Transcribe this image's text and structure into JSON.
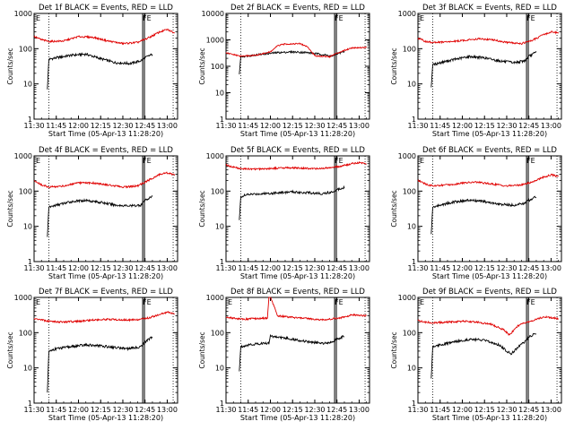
{
  "figure": {
    "xlabel": "Start Time (05-Apr-13 11:28:20)",
    "ylabel": "Counts/sec",
    "x_tick_labels": [
      "11:30",
      "11:45",
      "12:00",
      "12:15",
      "12:30",
      "12:45",
      "13:00"
    ],
    "y_tick_labels": [
      "1",
      "10",
      "100",
      "1000"
    ],
    "series_colors": {
      "events": "#000000",
      "lld": "#e00000"
    }
  },
  "chart_data": [
    {
      "type": "line",
      "title": "Det 1f BLACK = Events, RED = LLD",
      "marker_left": "E",
      "marker_right": "FE",
      "xlim": [
        "11:30",
        "13:07"
      ],
      "ylim": [
        1,
        1000
      ],
      "yscale": "log",
      "series": [
        {
          "role": "events",
          "x": [
            "11:39",
            "11:40",
            "11:45",
            "11:55",
            "12:05",
            "12:15",
            "12:25",
            "12:35",
            "12:42",
            "12:45",
            "12:50"
          ],
          "y": [
            7,
            50,
            55,
            65,
            70,
            52,
            40,
            38,
            45,
            55,
            70
          ]
        },
        {
          "role": "lld",
          "x": [
            "11:30",
            "11:35",
            "11:40",
            "11:50",
            "12:00",
            "12:10",
            "12:20",
            "12:30",
            "12:40",
            "12:47",
            "12:55",
            "13:00",
            "13:05"
          ],
          "y": [
            220,
            180,
            160,
            165,
            220,
            210,
            165,
            140,
            150,
            200,
            300,
            350,
            280
          ]
        }
      ]
    },
    {
      "type": "line",
      "title": "Det 2f BLACK = Events, RED = LLD",
      "marker_left": "",
      "marker_right": "FE",
      "xlim": [
        "11:30",
        "13:07"
      ],
      "ylim": [
        1,
        10000
      ],
      "yscale": "log",
      "series": [
        {
          "role": "events",
          "x": [
            "11:39",
            "11:40",
            "11:45",
            "11:55",
            "12:05",
            "12:15",
            "12:25",
            "12:35",
            "12:42",
            "12:45",
            "12:50"
          ],
          "y": [
            50,
            230,
            250,
            290,
            330,
            350,
            330,
            280,
            240,
            300,
            360
          ]
        },
        {
          "role": "lld",
          "x": [
            "11:30",
            "11:40",
            "11:50",
            "12:00",
            "12:05",
            "12:10",
            "12:20",
            "12:25",
            "12:30",
            "12:40",
            "12:47",
            "12:55",
            "13:05"
          ],
          "y": [
            320,
            240,
            260,
            350,
            600,
            700,
            720,
            550,
            250,
            230,
            350,
            500,
            520
          ]
        }
      ]
    },
    {
      "type": "line",
      "title": "Det 3f BLACK = Events, RED = LLD",
      "marker_left": "E",
      "marker_right": "FE",
      "xlim": [
        "11:30",
        "13:07"
      ],
      "ylim": [
        1,
        1000
      ],
      "yscale": "log",
      "series": [
        {
          "role": "events",
          "x": [
            "11:39",
            "11:40",
            "11:45",
            "11:55",
            "12:05",
            "12:15",
            "12:25",
            "12:35",
            "12:42",
            "12:45",
            "12:50"
          ],
          "y": [
            8,
            35,
            40,
            50,
            60,
            55,
            45,
            40,
            45,
            60,
            80
          ]
        },
        {
          "role": "lld",
          "x": [
            "11:30",
            "11:35",
            "11:40",
            "11:50",
            "12:00",
            "12:10",
            "12:20",
            "12:30",
            "12:40",
            "12:47",
            "12:55",
            "13:00",
            "13:05"
          ],
          "y": [
            200,
            160,
            150,
            155,
            170,
            190,
            180,
            150,
            140,
            170,
            250,
            300,
            280
          ]
        }
      ]
    },
    {
      "type": "line",
      "title": "Det 4f BLACK = Events, RED = LLD",
      "marker_left": "E",
      "marker_right": "FE",
      "xlim": [
        "11:30",
        "13:07"
      ],
      "ylim": [
        1,
        1000
      ],
      "yscale": "log",
      "series": [
        {
          "role": "events",
          "x": [
            "11:39",
            "11:40",
            "11:45",
            "11:55",
            "12:05",
            "12:15",
            "12:25",
            "12:35",
            "12:42",
            "12:45",
            "12:50"
          ],
          "y": [
            5,
            35,
            40,
            50,
            55,
            48,
            40,
            38,
            40,
            55,
            70
          ]
        },
        {
          "role": "lld",
          "x": [
            "11:30",
            "11:35",
            "11:40",
            "11:50",
            "12:00",
            "12:10",
            "12:20",
            "12:30",
            "12:40",
            "12:47",
            "12:55",
            "13:00",
            "13:05"
          ],
          "y": [
            200,
            150,
            130,
            140,
            170,
            170,
            150,
            130,
            140,
            200,
            300,
            330,
            290
          ]
        }
      ]
    },
    {
      "type": "line",
      "title": "Det 5f BLACK = Events, RED = LLD",
      "marker_left": "",
      "marker_right": "FE",
      "xlim": [
        "11:30",
        "13:07"
      ],
      "ylim": [
        1,
        1000
      ],
      "yscale": "log",
      "series": [
        {
          "role": "events",
          "x": [
            "11:39",
            "11:40",
            "11:45",
            "11:55",
            "12:05",
            "12:15",
            "12:25",
            "12:35",
            "12:42",
            "12:45",
            "12:50"
          ],
          "y": [
            15,
            70,
            80,
            85,
            90,
            95,
            90,
            85,
            95,
            110,
            130
          ]
        },
        {
          "role": "lld",
          "x": [
            "11:30",
            "11:35",
            "11:40",
            "11:50",
            "12:00",
            "12:10",
            "12:20",
            "12:30",
            "12:40",
            "12:47",
            "12:55",
            "13:00",
            "13:05"
          ],
          "y": [
            550,
            480,
            430,
            420,
            440,
            460,
            450,
            430,
            460,
            500,
            600,
            650,
            600
          ]
        }
      ]
    },
    {
      "type": "line",
      "title": "Det 6f BLACK = Events, RED = LLD",
      "marker_left": "E",
      "marker_right": "FE",
      "xlim": [
        "11:30",
        "13:07"
      ],
      "ylim": [
        1,
        1000
      ],
      "yscale": "log",
      "series": [
        {
          "role": "events",
          "x": [
            "11:39",
            "11:40",
            "11:45",
            "11:55",
            "12:05",
            "12:15",
            "12:25",
            "12:35",
            "12:42",
            "12:45",
            "12:50"
          ],
          "y": [
            6,
            35,
            40,
            50,
            55,
            50,
            42,
            40,
            45,
            55,
            70
          ]
        },
        {
          "role": "lld",
          "x": [
            "11:30",
            "11:35",
            "11:40",
            "11:50",
            "12:00",
            "12:10",
            "12:20",
            "12:30",
            "12:40",
            "12:47",
            "12:55",
            "13:00",
            "13:05"
          ],
          "y": [
            200,
            160,
            140,
            150,
            170,
            180,
            160,
            140,
            150,
            180,
            250,
            290,
            260
          ]
        }
      ]
    },
    {
      "type": "line",
      "title": "Det 7f BLACK = Events, RED = LLD",
      "marker_left": "E",
      "marker_right": "FE",
      "xlim": [
        "11:30",
        "13:07"
      ],
      "ylim": [
        1,
        1000
      ],
      "yscale": "log",
      "series": [
        {
          "role": "events",
          "x": [
            "11:39",
            "11:40",
            "11:45",
            "11:55",
            "12:05",
            "12:15",
            "12:25",
            "12:35",
            "12:42",
            "12:45",
            "12:50"
          ],
          "y": [
            2,
            30,
            35,
            40,
            45,
            42,
            38,
            35,
            40,
            55,
            75
          ]
        },
        {
          "role": "lld",
          "x": [
            "11:30",
            "11:35",
            "11:40",
            "11:50",
            "12:00",
            "12:10",
            "12:20",
            "12:30",
            "12:40",
            "12:47",
            "12:55",
            "13:00",
            "13:05"
          ],
          "y": [
            250,
            230,
            210,
            200,
            210,
            230,
            240,
            230,
            230,
            260,
            330,
            380,
            350
          ]
        }
      ]
    },
    {
      "type": "line",
      "title": "Det 8f BLACK = Events, RED = LLD",
      "marker_left": "E",
      "marker_right": "FE",
      "xlim": [
        "11:30",
        "13:07"
      ],
      "ylim": [
        1,
        1000
      ],
      "yscale": "log",
      "series": [
        {
          "role": "events",
          "x": [
            "11:39",
            "11:40",
            "11:45",
            "11:55",
            "11:59",
            "12:00",
            "12:05",
            "12:15",
            "12:25",
            "12:35",
            "12:42",
            "12:45",
            "12:50"
          ],
          "y": [
            8,
            40,
            45,
            50,
            50,
            80,
            75,
            65,
            55,
            50,
            55,
            65,
            80
          ]
        },
        {
          "role": "lld",
          "x": [
            "11:30",
            "11:35",
            "11:40",
            "11:50",
            "11:58",
            "11:59",
            "12:00",
            "12:05",
            "12:15",
            "12:25",
            "12:35",
            "12:40",
            "12:47",
            "12:55",
            "13:05"
          ],
          "y": [
            280,
            260,
            240,
            250,
            260,
            1000,
            1000,
            300,
            270,
            250,
            230,
            240,
            260,
            320,
            300
          ]
        }
      ]
    },
    {
      "type": "line",
      "title": "Det 9f BLACK = Events, RED = LLD",
      "marker_left": "E",
      "marker_right": "FE",
      "xlim": [
        "11:30",
        "13:07"
      ],
      "ylim": [
        1,
        1000
      ],
      "yscale": "log",
      "series": [
        {
          "role": "events",
          "x": [
            "11:39",
            "11:40",
            "11:45",
            "11:55",
            "12:05",
            "12:15",
            "12:25",
            "12:30",
            "12:33",
            "12:38",
            "12:42",
            "12:45",
            "12:50"
          ],
          "y": [
            5,
            40,
            45,
            55,
            65,
            60,
            45,
            30,
            25,
            40,
            55,
            75,
            95
          ]
        },
        {
          "role": "lld",
          "x": [
            "11:30",
            "11:35",
            "11:40",
            "11:50",
            "12:00",
            "12:10",
            "12:20",
            "12:28",
            "12:32",
            "12:36",
            "12:40",
            "12:47",
            "12:55",
            "13:05"
          ],
          "y": [
            220,
            200,
            190,
            200,
            210,
            200,
            170,
            120,
            85,
            140,
            180,
            220,
            280,
            250
          ]
        }
      ]
    }
  ]
}
